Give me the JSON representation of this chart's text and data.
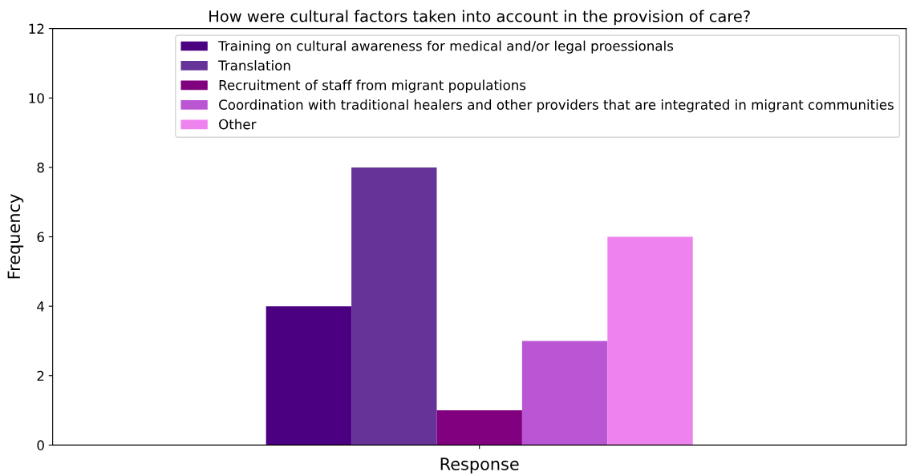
{
  "chart_data": {
    "type": "bar",
    "title": "How were cultural factors taken into account in the provision of care?",
    "xlabel": "Response",
    "ylabel": "Frequency",
    "categories": [
      null
    ],
    "series": [
      {
        "name": "Training on cultural awareness for medical and/or legal proessionals",
        "color": "#4b0082",
        "values": [
          4
        ]
      },
      {
        "name": "Translation",
        "color": "#663399",
        "values": [
          8
        ]
      },
      {
        "name": "Recruitment of staff from migrant populations",
        "color": "#800080",
        "values": [
          1
        ]
      },
      {
        "name": "Coordination with traditional healers and other providers that are integrated in migrant communities",
        "color": "#ba55d3",
        "values": [
          3
        ]
      },
      {
        "name": "Other",
        "color": "#ee82ee",
        "values": [
          6
        ]
      }
    ],
    "ylim": [
      0,
      12
    ],
    "yticks": [
      0,
      2,
      4,
      6,
      8,
      10,
      12
    ],
    "grid": false,
    "legend": "top right"
  }
}
